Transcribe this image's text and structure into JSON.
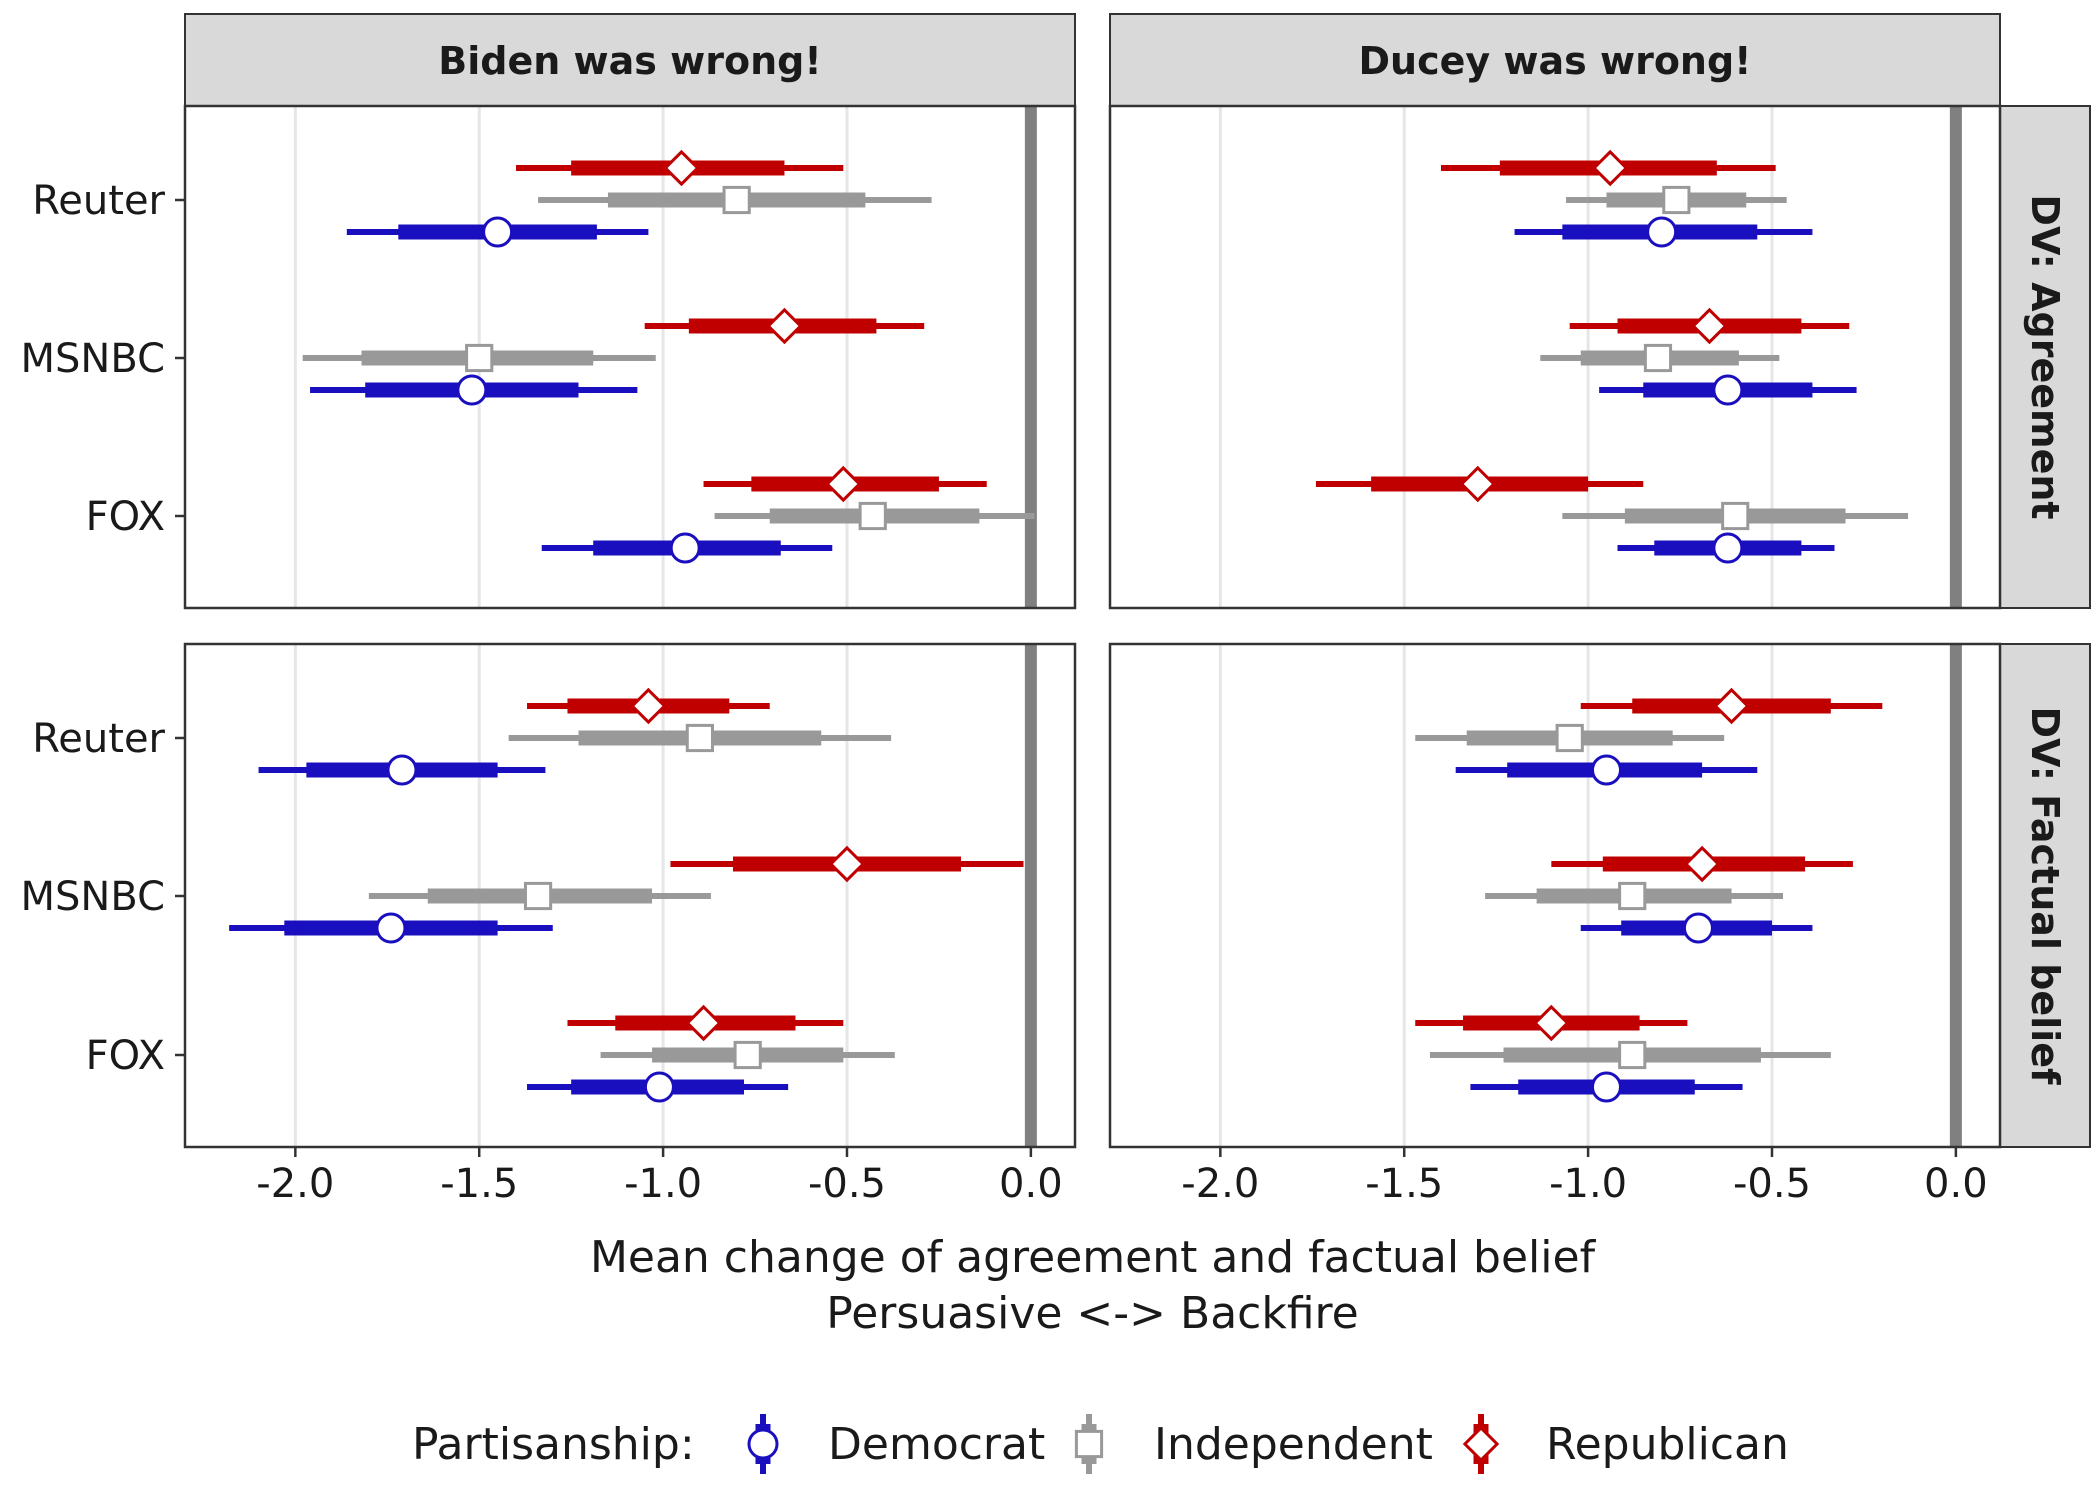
{
  "chart_data": {
    "type": "forest",
    "facet_columns": [
      "Biden was wrong!",
      "Ducey was wrong!"
    ],
    "facet_rows": [
      "DV: Agreement",
      "DV: Factual belief"
    ],
    "categories": [
      "Reuter",
      "MSNBC",
      "FOX"
    ],
    "x_ticks": [
      "-2.0",
      "-1.5",
      "-1.0",
      "-0.5",
      "0.0"
    ],
    "x_tick_values": [
      -2.0,
      -1.5,
      -1.0,
      -0.5,
      0.0
    ],
    "xlim": [
      -2.3,
      0.12
    ],
    "reference_line": 0.0,
    "xlabel_line1": "Mean change of agreement and factual belief",
    "xlabel_line2": "Persuasive <-> Backfire",
    "legend": {
      "title": "Partisanship:",
      "position": "bottom",
      "items": [
        {
          "key": "Democrat",
          "label": "Democrat",
          "color": "#1a0fbf",
          "shape": "circle"
        },
        {
          "key": "Independent",
          "label": "Independent",
          "color": "#999999",
          "shape": "square"
        },
        {
          "key": "Republican",
          "label": "Republican",
          "color": "#c00000",
          "shape": "diamond"
        }
      ]
    },
    "panels": [
      {
        "row": 0,
        "col": 0,
        "points": [
          {
            "category": "Reuter",
            "group": "Republican",
            "mean": -0.95,
            "inner": [
              -1.25,
              -0.67
            ],
            "outer": [
              -1.4,
              -0.51
            ]
          },
          {
            "category": "Reuter",
            "group": "Independent",
            "mean": -0.8,
            "inner": [
              -1.15,
              -0.45
            ],
            "outer": [
              -1.34,
              -0.27
            ]
          },
          {
            "category": "Reuter",
            "group": "Democrat",
            "mean": -1.45,
            "inner": [
              -1.72,
              -1.18
            ],
            "outer": [
              -1.86,
              -1.04
            ]
          },
          {
            "category": "MSNBC",
            "group": "Republican",
            "mean": -0.67,
            "inner": [
              -0.93,
              -0.42
            ],
            "outer": [
              -1.05,
              -0.29
            ]
          },
          {
            "category": "MSNBC",
            "group": "Independent",
            "mean": -1.5,
            "inner": [
              -1.82,
              -1.19
            ],
            "outer": [
              -1.98,
              -1.02
            ]
          },
          {
            "category": "MSNBC",
            "group": "Democrat",
            "mean": -1.52,
            "inner": [
              -1.81,
              -1.23
            ],
            "outer": [
              -1.96,
              -1.07
            ]
          },
          {
            "category": "FOX",
            "group": "Republican",
            "mean": -0.51,
            "inner": [
              -0.76,
              -0.25
            ],
            "outer": [
              -0.89,
              -0.12
            ]
          },
          {
            "category": "FOX",
            "group": "Independent",
            "mean": -0.43,
            "inner": [
              -0.71,
              -0.14
            ],
            "outer": [
              -0.86,
              0.01
            ]
          },
          {
            "category": "FOX",
            "group": "Democrat",
            "mean": -0.94,
            "inner": [
              -1.19,
              -0.68
            ],
            "outer": [
              -1.33,
              -0.54
            ]
          }
        ]
      },
      {
        "row": 0,
        "col": 1,
        "points": [
          {
            "category": "Reuter",
            "group": "Republican",
            "mean": -0.94,
            "inner": [
              -1.24,
              -0.65
            ],
            "outer": [
              -1.4,
              -0.49
            ]
          },
          {
            "category": "Reuter",
            "group": "Independent",
            "mean": -0.76,
            "inner": [
              -0.95,
              -0.57
            ],
            "outer": [
              -1.06,
              -0.46
            ]
          },
          {
            "category": "Reuter",
            "group": "Democrat",
            "mean": -0.8,
            "inner": [
              -1.07,
              -0.54
            ],
            "outer": [
              -1.2,
              -0.39
            ]
          },
          {
            "category": "MSNBC",
            "group": "Republican",
            "mean": -0.67,
            "inner": [
              -0.92,
              -0.42
            ],
            "outer": [
              -1.05,
              -0.29
            ]
          },
          {
            "category": "MSNBC",
            "group": "Independent",
            "mean": -0.81,
            "inner": [
              -1.02,
              -0.59
            ],
            "outer": [
              -1.13,
              -0.48
            ]
          },
          {
            "category": "MSNBC",
            "group": "Democrat",
            "mean": -0.62,
            "inner": [
              -0.85,
              -0.39
            ],
            "outer": [
              -0.97,
              -0.27
            ]
          },
          {
            "category": "FOX",
            "group": "Republican",
            "mean": -1.3,
            "inner": [
              -1.59,
              -1.0
            ],
            "outer": [
              -1.74,
              -0.85
            ]
          },
          {
            "category": "FOX",
            "group": "Independent",
            "mean": -0.6,
            "inner": [
              -0.9,
              -0.3
            ],
            "outer": [
              -1.07,
              -0.13
            ]
          },
          {
            "category": "FOX",
            "group": "Democrat",
            "mean": -0.62,
            "inner": [
              -0.82,
              -0.42
            ],
            "outer": [
              -0.92,
              -0.33
            ]
          }
        ]
      },
      {
        "row": 1,
        "col": 0,
        "points": [
          {
            "category": "Reuter",
            "group": "Republican",
            "mean": -1.04,
            "inner": [
              -1.26,
              -0.82
            ],
            "outer": [
              -1.37,
              -0.71
            ]
          },
          {
            "category": "Reuter",
            "group": "Independent",
            "mean": -0.9,
            "inner": [
              -1.23,
              -0.57
            ],
            "outer": [
              -1.42,
              -0.38
            ]
          },
          {
            "category": "Reuter",
            "group": "Democrat",
            "mean": -1.71,
            "inner": [
              -1.97,
              -1.45
            ],
            "outer": [
              -2.1,
              -1.32
            ]
          },
          {
            "category": "MSNBC",
            "group": "Republican",
            "mean": -0.5,
            "inner": [
              -0.81,
              -0.19
            ],
            "outer": [
              -0.98,
              -0.02
            ]
          },
          {
            "category": "MSNBC",
            "group": "Independent",
            "mean": -1.34,
            "inner": [
              -1.64,
              -1.03
            ],
            "outer": [
              -1.8,
              -0.87
            ]
          },
          {
            "category": "MSNBC",
            "group": "Democrat",
            "mean": -1.74,
            "inner": [
              -2.03,
              -1.45
            ],
            "outer": [
              -2.18,
              -1.3
            ]
          },
          {
            "category": "FOX",
            "group": "Republican",
            "mean": -0.89,
            "inner": [
              -1.13,
              -0.64
            ],
            "outer": [
              -1.26,
              -0.51
            ]
          },
          {
            "category": "FOX",
            "group": "Independent",
            "mean": -0.77,
            "inner": [
              -1.03,
              -0.51
            ],
            "outer": [
              -1.17,
              -0.37
            ]
          },
          {
            "category": "FOX",
            "group": "Democrat",
            "mean": -1.01,
            "inner": [
              -1.25,
              -0.78
            ],
            "outer": [
              -1.37,
              -0.66
            ]
          }
        ]
      },
      {
        "row": 1,
        "col": 1,
        "points": [
          {
            "category": "Reuter",
            "group": "Republican",
            "mean": -0.61,
            "inner": [
              -0.88,
              -0.34
            ],
            "outer": [
              -1.02,
              -0.2
            ]
          },
          {
            "category": "Reuter",
            "group": "Independent",
            "mean": -1.05,
            "inner": [
              -1.33,
              -0.77
            ],
            "outer": [
              -1.47,
              -0.63
            ]
          },
          {
            "category": "Reuter",
            "group": "Democrat",
            "mean": -0.95,
            "inner": [
              -1.22,
              -0.69
            ],
            "outer": [
              -1.36,
              -0.54
            ]
          },
          {
            "category": "MSNBC",
            "group": "Republican",
            "mean": -0.69,
            "inner": [
              -0.96,
              -0.41
            ],
            "outer": [
              -1.1,
              -0.28
            ]
          },
          {
            "category": "MSNBC",
            "group": "Independent",
            "mean": -0.88,
            "inner": [
              -1.14,
              -0.61
            ],
            "outer": [
              -1.28,
              -0.47
            ]
          },
          {
            "category": "MSNBC",
            "group": "Democrat",
            "mean": -0.7,
            "inner": [
              -0.91,
              -0.5
            ],
            "outer": [
              -1.02,
              -0.39
            ]
          },
          {
            "category": "FOX",
            "group": "Republican",
            "mean": -1.1,
            "inner": [
              -1.34,
              -0.86
            ],
            "outer": [
              -1.47,
              -0.73
            ]
          },
          {
            "category": "FOX",
            "group": "Independent",
            "mean": -0.88,
            "inner": [
              -1.23,
              -0.53
            ],
            "outer": [
              -1.43,
              -0.34
            ]
          },
          {
            "category": "FOX",
            "group": "Democrat",
            "mean": -0.95,
            "inner": [
              -1.19,
              -0.71
            ],
            "outer": [
              -1.32,
              -0.58
            ]
          }
        ]
      }
    ]
  }
}
